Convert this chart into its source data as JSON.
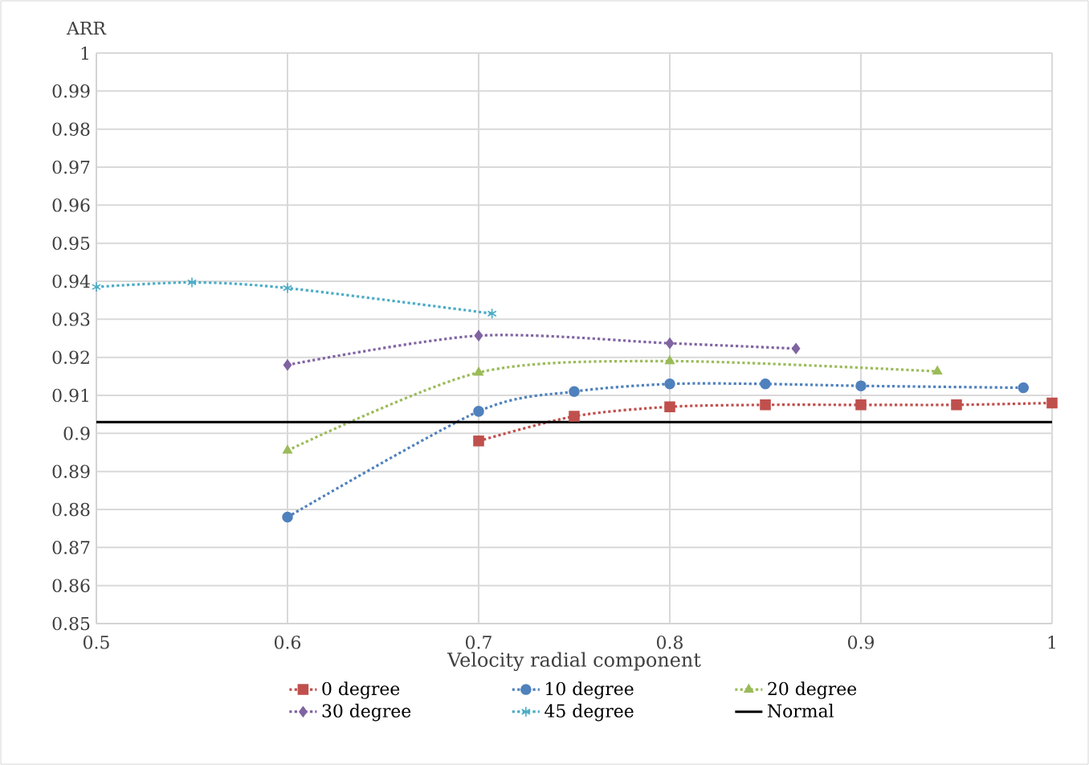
{
  "chart_data": {
    "type": "line",
    "ylabel": "ARR",
    "xlabel": "Velocity radial component",
    "xlim": [
      0.5,
      1
    ],
    "xticks": [
      0.5,
      0.6,
      0.7,
      0.8,
      0.9,
      1
    ],
    "ylim": [
      0.85,
      1
    ],
    "yticks": [
      0.85,
      0.86,
      0.87,
      0.88,
      0.89,
      0.9,
      0.91,
      0.92,
      0.93,
      0.94,
      0.95,
      0.96,
      0.97,
      0.98,
      0.99,
      1
    ],
    "grid": true,
    "legend": "bottom",
    "line_style": "dotted",
    "series": [
      {
        "name": "0 degree",
        "color": "#c0504d",
        "marker": "square",
        "x": [
          0.7,
          0.75,
          0.8,
          0.85,
          0.9,
          0.95,
          1.0
        ],
        "values": [
          0.898,
          0.9045,
          0.907,
          0.9075,
          0.9075,
          0.9075,
          0.908
        ]
      },
      {
        "name": "10 degree",
        "color": "#4f81bd",
        "marker": "circle",
        "x": [
          0.6,
          0.7,
          0.75,
          0.8,
          0.85,
          0.9,
          0.985
        ],
        "values": [
          0.878,
          0.9058,
          0.911,
          0.913,
          0.913,
          0.9125,
          0.912
        ]
      },
      {
        "name": "20 degree",
        "color": "#9bbb59",
        "marker": "triangle",
        "x": [
          0.6,
          0.7,
          0.8,
          0.94
        ],
        "values": [
          0.8955,
          0.916,
          0.919,
          0.9163
        ]
      },
      {
        "name": "30 degree",
        "color": "#8064a2",
        "marker": "diamond",
        "x": [
          0.6,
          0.7,
          0.8,
          0.866
        ],
        "values": [
          0.918,
          0.9257,
          0.9237,
          0.9223
        ]
      },
      {
        "name": "45 degree",
        "color": "#4bacc6",
        "marker": "cross",
        "x": [
          0.5,
          0.55,
          0.6,
          0.707
        ],
        "values": [
          0.9385,
          0.9397,
          0.9382,
          0.9315
        ]
      },
      {
        "name": "Normal",
        "color": "#000000",
        "marker": "none",
        "line_style": "solid",
        "x": [
          0.5,
          1.0
        ],
        "values": [
          0.903,
          0.903
        ]
      }
    ]
  }
}
